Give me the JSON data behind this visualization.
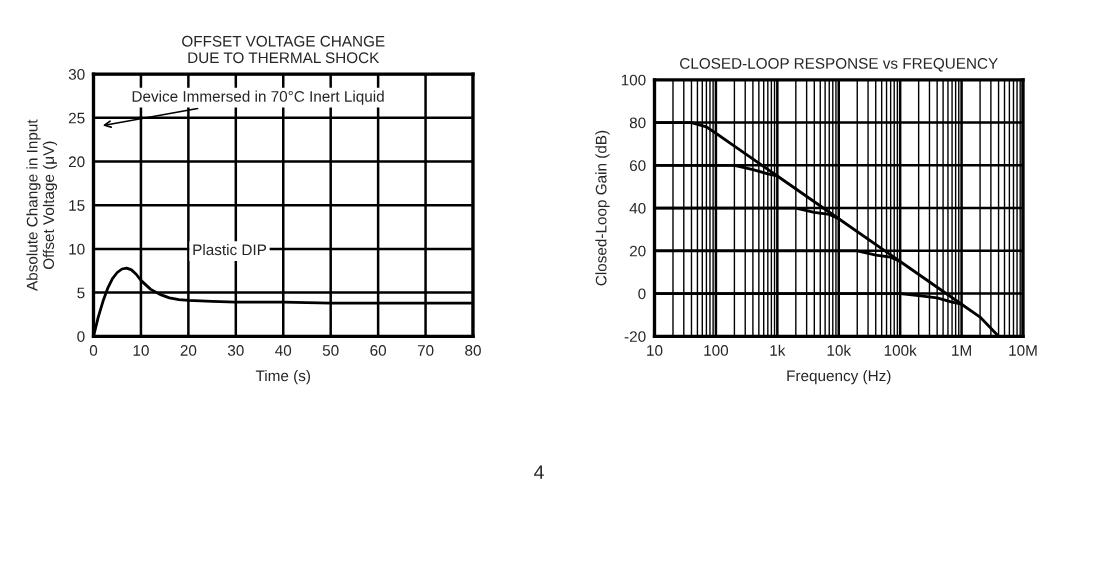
{
  "chart_data": [
    {
      "type": "line",
      "title": "OFFSET VOLTAGE CHANGE\nDUE TO THERMAL SHOCK",
      "xlabel": "Time (s)",
      "ylabel": "Absolute Change in Input\nOffset Voltage (μV)",
      "xlim": [
        0,
        80
      ],
      "xticks": [
        0,
        10,
        20,
        30,
        40,
        50,
        60,
        70,
        80
      ],
      "ylim": [
        0,
        30
      ],
      "yticks": [
        0,
        5,
        10,
        15,
        20,
        25,
        30
      ],
      "grid": true,
      "series": [
        {
          "color": "#000000",
          "x": [
            0,
            1,
            2,
            3,
            4,
            5,
            6,
            7,
            8,
            9,
            10,
            12,
            14,
            16,
            18,
            20,
            25,
            30,
            40,
            50,
            60,
            70,
            80
          ],
          "values": [
            0,
            2.2,
            4,
            5.5,
            6.6,
            7.3,
            7.7,
            7.8,
            7.6,
            7.1,
            6.4,
            5.4,
            4.8,
            4.4,
            4.2,
            4.1,
            4,
            3.9,
            3.9,
            3.8,
            3.8,
            3.8,
            3.8
          ]
        }
      ],
      "annotations": [
        "Device Immersed in 70°C Inert Liquid",
        "Plastic DIP",
        "4"
      ]
    },
    {
      "type": "line",
      "title": "CLOSED-LOOP RESPONSE vs FREQUENCY",
      "xlabel": "Frequency (Hz)",
      "ylabel": "Closed-Loop Gain (dB)",
      "log": "x",
      "xlim": [
        10,
        10000000
      ],
      "xticks": [
        10,
        100,
        {
          "value": 1000,
          "label": "1k"
        },
        {
          "value": 10000,
          "label": "10k"
        },
        {
          "value": 100000,
          "label": "100k"
        },
        {
          "value": 1000000,
          "label": "1M"
        },
        {
          "value": 10000000,
          "label": "10M"
        }
      ],
      "ylim": [
        -20,
        100
      ],
      "yticks": [
        -20,
        0,
        20,
        40,
        60,
        80,
        100
      ],
      "grid": true,
      "series": [
        {
          "color": "#000000",
          "x": [
            10,
            20,
            40,
            70,
            100,
            200,
            500,
            1000,
            10000,
            100000,
            1000000,
            2000000,
            4000000
          ],
          "values": [
            80,
            80,
            80,
            78,
            75,
            69,
            61,
            55,
            35,
            15,
            -5,
            -11,
            -20
          ]
        },
        {
          "color": "#000000",
          "x": [
            10,
            100,
            200,
            400,
            700,
            1000
          ],
          "values": [
            60,
            60,
            60,
            58,
            56,
            55
          ]
        },
        {
          "color": "#000000",
          "x": [
            10,
            1000,
            2000,
            4000,
            7000,
            10000
          ],
          "values": [
            40,
            40,
            40,
            38,
            37,
            35
          ]
        },
        {
          "color": "#000000",
          "x": [
            10,
            10000,
            20000,
            40000,
            70000,
            100000
          ],
          "values": [
            20,
            20,
            20,
            18,
            17,
            15
          ]
        },
        {
          "color": "#000000",
          "x": [
            10,
            100000,
            200000,
            400000,
            700000,
            1000000
          ],
          "values": [
            0,
            0,
            -1,
            -2,
            -4,
            -5
          ]
        }
      ]
    }
  ]
}
